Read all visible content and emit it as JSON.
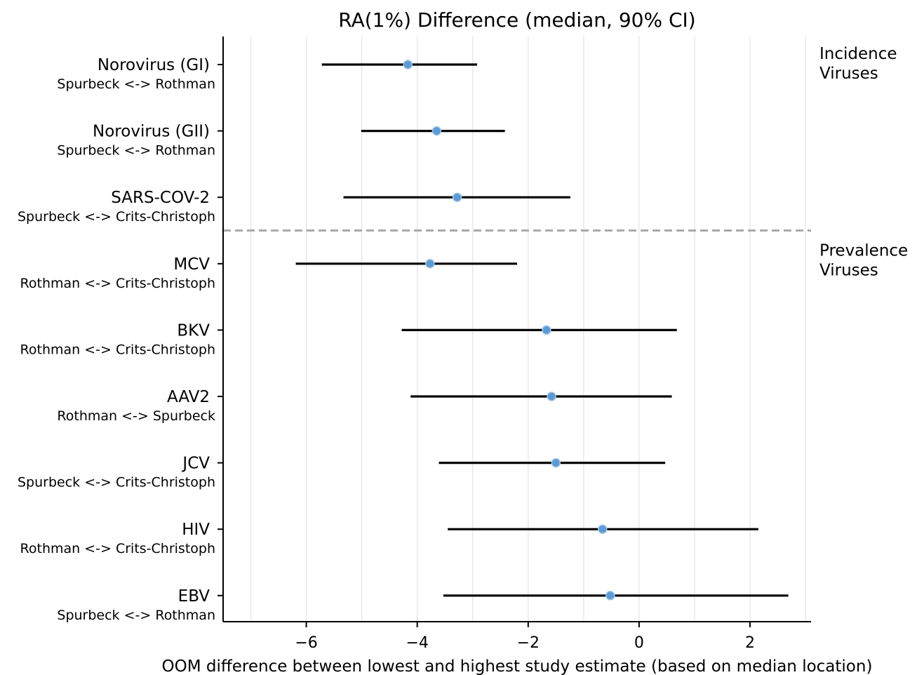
{
  "chart_data": {
    "type": "scatter",
    "title": "RA(1%) Difference (median, 90% CI)",
    "xlabel": "OOM difference between lowest and highest study estimate (based on median location)",
    "ylabel": "",
    "xlim": [
      -7.5,
      3.1
    ],
    "xticks": [
      -6,
      -4,
      -2,
      0,
      2
    ],
    "xtick_labels": [
      "−6",
      "−4",
      "−2",
      "0",
      "2"
    ],
    "grid": "vertical, every 1 unit",
    "point_color": "#5b9bd5",
    "interval_color": "#000000",
    "separator_color": "#aaaaaa",
    "groups": [
      {
        "label": "Incidence\nViruses",
        "lines": [
          "Incidence",
          "Viruses"
        ],
        "rows": [
          0,
          1,
          2
        ]
      },
      {
        "label": "Prevalence\nViruses",
        "lines": [
          "Prevalence",
          "Viruses"
        ],
        "rows": [
          3,
          4,
          5,
          6,
          7,
          8
        ]
      }
    ],
    "rows": [
      {
        "virus": "Norovirus (GI)",
        "comparison": "Spurbeck <-> Rothman",
        "median": -4.17,
        "low": -5.72,
        "high": -2.92
      },
      {
        "virus": "Norovirus (GII)",
        "comparison": "Spurbeck <-> Rothman",
        "median": -3.65,
        "low": -5.01,
        "high": -2.42
      },
      {
        "virus": "SARS-COV-2",
        "comparison": "Spurbeck <-> Crits-Christoph",
        "median": -3.28,
        "low": -5.33,
        "high": -1.24
      },
      {
        "virus": "MCV",
        "comparison": "Rothman <-> Crits-Christoph",
        "median": -3.77,
        "low": -6.19,
        "high": -2.2
      },
      {
        "virus": "BKV",
        "comparison": "Rothman <-> Crits-Christoph",
        "median": -1.67,
        "low": -4.28,
        "high": 0.68
      },
      {
        "virus": "AAV2",
        "comparison": "Rothman <-> Spurbeck",
        "median": -1.58,
        "low": -4.12,
        "high": 0.59
      },
      {
        "virus": "JCV",
        "comparison": "Spurbeck <-> Crits-Christoph",
        "median": -1.5,
        "low": -3.61,
        "high": 0.47
      },
      {
        "virus": "HIV",
        "comparison": "Rothman <-> Crits-Christoph",
        "median": -0.66,
        "low": -3.45,
        "high": 2.15
      },
      {
        "virus": "EBV",
        "comparison": "Spurbeck <-> Rothman",
        "median": -0.52,
        "low": -3.53,
        "high": 2.69
      }
    ]
  }
}
